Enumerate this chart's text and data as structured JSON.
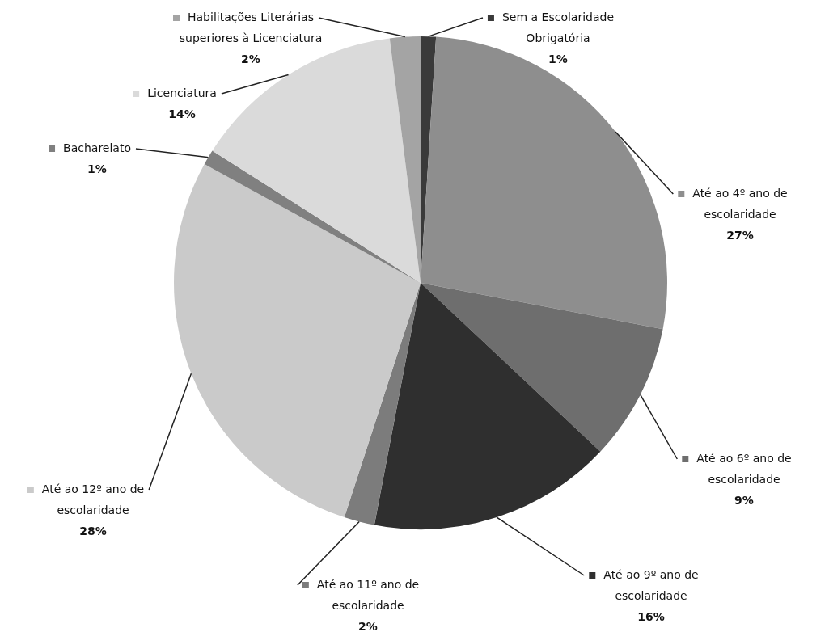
{
  "chart_data": {
    "type": "pie",
    "categories": [
      "Sem a Escolaridade Obrigatória",
      "Até ao 4º ano de escolaridade",
      "Até ao 6º ano de escolaridade",
      "Até ao 9º ano de escolaridade",
      "Até ao 11º ano de escolaridade",
      "Até ao 12º ano de escolaridade",
      "Bacharelato",
      "Licenciatura",
      "Habilitações Literárias superiores à Licenciatura"
    ],
    "values": [
      1,
      27,
      9,
      16,
      2,
      28,
      1,
      14,
      2
    ],
    "value_labels": [
      "1%",
      "27%",
      "9%",
      "16%",
      "2%",
      "28%",
      "1%",
      "14%",
      "2%"
    ],
    "colors": [
      "#3a3a3a",
      "#8e8e8e",
      "#6e6e6e",
      "#2f2f2f",
      "#7c7c7c",
      "#cacaca",
      "#808080",
      "#dadada",
      "#a4a4a4"
    ],
    "legend": true
  }
}
